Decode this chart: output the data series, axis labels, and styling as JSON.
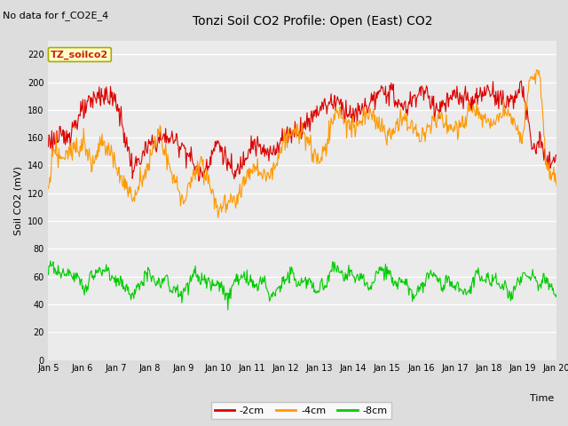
{
  "title": "Tonzi Soil CO2 Profile: Open (East) CO2",
  "subtitle": "No data for f_CO2E_4",
  "ylabel": "Soil CO2 (mV)",
  "xlabel": "Time",
  "legend_label": "TZ_soilco2",
  "series_labels": [
    "-2cm",
    "-4cm",
    "-8cm"
  ],
  "series_colors": [
    "#dd0000",
    "#ff9900",
    "#00cc00"
  ],
  "ylim": [
    0,
    230
  ],
  "yticks": [
    0,
    20,
    40,
    60,
    80,
    100,
    120,
    140,
    160,
    180,
    200,
    220
  ],
  "xtick_labels": [
    "Jan 5",
    "Jan 6",
    "Jan 7",
    "Jan 8",
    "Jan 9",
    "Jan 10",
    "Jan 11",
    "Jan 12",
    "Jan 13",
    "Jan 14",
    "Jan 15",
    "Jan 16",
    "Jan 17",
    "Jan 18",
    "Jan 19",
    "Jan 20"
  ],
  "bg_color": "#dddddd",
  "plot_bg_color": "#ebebeb",
  "grid_color": "#ffffff",
  "linewidth": 0.8,
  "title_fontsize": 10,
  "subtitle_fontsize": 8,
  "tick_fontsize": 7,
  "ylabel_fontsize": 8,
  "xlabel_fontsize": 8,
  "legend_fontsize": 8
}
